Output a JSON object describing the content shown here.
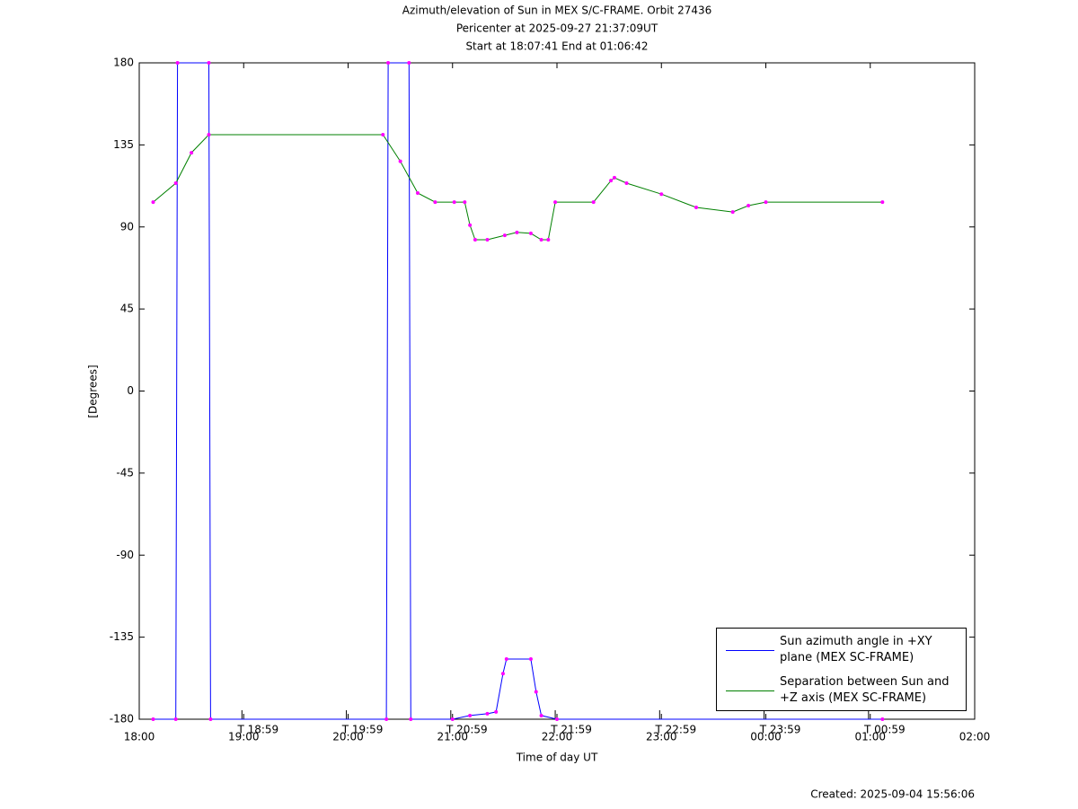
{
  "chart_data": {
    "type": "line",
    "title": "Azimuth/elevation of Sun in MEX S/C-FRAME.  Orbit 27436",
    "subtitle_lines": [
      "Pericenter at 2025-09-27 21:37:09UT",
      "Start at 18:07:41 End at 01:06:42"
    ],
    "xlabel": "Time of day UT",
    "ylabel": "[Degrees]",
    "footnote": "Created: 2025-09-04 15:56:06",
    "xlim": [
      "18:00",
      "02:00"
    ],
    "xticks": [
      "18:00",
      "19:00",
      "20:00",
      "21:00",
      "22:00",
      "23:00",
      "00:00",
      "01:00",
      "02:00"
    ],
    "time_marks": [
      {
        "x": "18:59",
        "label": "T 18:59"
      },
      {
        "x": "19:59",
        "label": "T 19:59"
      },
      {
        "x": "20:59",
        "label": "T 20:59"
      },
      {
        "x": "21:59",
        "label": "T 21:59"
      },
      {
        "x": "22:59",
        "label": "T 22:59"
      },
      {
        "x": "23:59",
        "label": "T 23:59"
      },
      {
        "x": "00:59",
        "label": "T 00:59"
      }
    ],
    "ylim": [
      -180,
      180
    ],
    "yticks": [
      180,
      135,
      90,
      45,
      0,
      -45,
      -90,
      -135,
      -180
    ],
    "marker_color": "#ff00ff",
    "legend_position": "lower right",
    "series": [
      {
        "name": "Sun azimuth angle in +XY plane (MEX SC-FRAME)",
        "color": "#0000ff",
        "x": [
          "18:08",
          "18:21",
          "18:22",
          "18:40",
          "18:41",
          "20:22",
          "20:23",
          "20:35",
          "20:36",
          "21:00",
          "21:10",
          "21:20",
          "21:25",
          "21:29",
          "21:31",
          "21:45",
          "21:48",
          "21:51",
          "22:00",
          "01:07"
        ],
        "values": [
          -180,
          -180,
          180,
          180,
          -180,
          -180,
          180,
          180,
          -180,
          -180,
          -178,
          -177,
          -176,
          -155,
          -147,
          -147,
          -165,
          -178,
          -180,
          -180
        ]
      },
      {
        "name": "Separation between Sun and +Z axis (MEX SC-FRAME)",
        "color": "#008000",
        "x": [
          "18:08",
          "18:21",
          "18:30",
          "18:40",
          "20:20",
          "20:30",
          "20:40",
          "20:50",
          "21:01",
          "21:07",
          "21:10",
          "21:13",
          "21:20",
          "21:30",
          "21:37",
          "21:45",
          "21:51",
          "21:55",
          "21:59",
          "22:21",
          "22:31",
          "22:33",
          "22:40",
          "23:00",
          "23:20",
          "23:41",
          "23:50",
          "00:00",
          "01:07"
        ],
        "values": [
          103.6,
          114,
          130.7,
          140.6,
          140.6,
          126,
          108.6,
          103.6,
          103.6,
          103.6,
          91,
          83,
          83,
          85.4,
          87,
          86.5,
          83,
          83,
          103.6,
          103.6,
          115.4,
          117,
          114,
          108,
          100.7,
          98.2,
          101.7,
          103.6,
          103.6
        ]
      }
    ]
  }
}
